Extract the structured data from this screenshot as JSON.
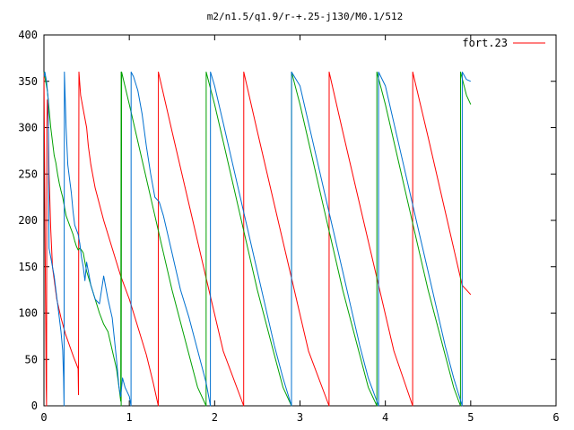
{
  "chart_data": {
    "type": "line",
    "title": "m2/n1.5/q1.9/r-+.25-j130/M0.1/512",
    "xlim": [
      0,
      6
    ],
    "ylim": [
      0,
      400
    ],
    "x_ticks": [
      "0",
      "1",
      "2",
      "3",
      "4",
      "5",
      "6"
    ],
    "y_ticks": [
      "0",
      "50",
      "100",
      "150",
      "200",
      "250",
      "300",
      "350",
      "400"
    ],
    "grid": false,
    "legend_position": "top-right",
    "series": [
      {
        "name": "fort.23",
        "color": "#ff0000",
        "points": [
          [
            0.0,
            360
          ],
          [
            0.005,
            290
          ],
          [
            0.012,
            200
          ],
          [
            0.018,
            120
          ],
          [
            0.022,
            75
          ],
          [
            0.026,
            20
          ],
          [
            0.03,
            0
          ],
          [
            0.034,
            300
          ],
          [
            0.04,
            330
          ],
          [
            0.05,
            310
          ],
          [
            0.06,
            250
          ],
          [
            0.08,
            190
          ],
          [
            0.1,
            150
          ],
          [
            0.15,
            115
          ],
          [
            0.2,
            95
          ],
          [
            0.25,
            78
          ],
          [
            0.3,
            65
          ],
          [
            0.35,
            52
          ],
          [
            0.38,
            45
          ],
          [
            0.4,
            40
          ],
          [
            0.405,
            12
          ],
          [
            0.41,
            360
          ],
          [
            0.43,
            335
          ],
          [
            0.47,
            315
          ],
          [
            0.5,
            300
          ],
          [
            0.52,
            280
          ],
          [
            0.55,
            260
          ],
          [
            0.6,
            235
          ],
          [
            0.7,
            200
          ],
          [
            0.8,
            170
          ],
          [
            0.9,
            140
          ],
          [
            1.0,
            115
          ],
          [
            1.1,
            85
          ],
          [
            1.2,
            55
          ],
          [
            1.28,
            25
          ],
          [
            1.34,
            0
          ],
          [
            1.341,
            360
          ],
          [
            1.5,
            296
          ],
          [
            1.7,
            217
          ],
          [
            1.9,
            138
          ],
          [
            2.1,
            59
          ],
          [
            2.34,
            0
          ],
          [
            2.341,
            360
          ],
          [
            2.5,
            296
          ],
          [
            2.7,
            217
          ],
          [
            2.9,
            138
          ],
          [
            3.1,
            59
          ],
          [
            3.34,
            0
          ],
          [
            3.341,
            360
          ],
          [
            3.5,
            296
          ],
          [
            3.7,
            217
          ],
          [
            3.9,
            138
          ],
          [
            4.1,
            59
          ],
          [
            4.32,
            0
          ],
          [
            4.321,
            360
          ],
          [
            4.5,
            290
          ],
          [
            4.7,
            210
          ],
          [
            4.9,
            130
          ],
          [
            5.0,
            120
          ]
        ]
      },
      {
        "name": "",
        "color": "#00a000",
        "points": [
          [
            0.0,
            360
          ],
          [
            0.02,
            350
          ],
          [
            0.04,
            340
          ],
          [
            0.06,
            320
          ],
          [
            0.08,
            300
          ],
          [
            0.1,
            285
          ],
          [
            0.12,
            270
          ],
          [
            0.14,
            262
          ],
          [
            0.16,
            250
          ],
          [
            0.18,
            240
          ],
          [
            0.2,
            232
          ],
          [
            0.22,
            225
          ],
          [
            0.24,
            215
          ],
          [
            0.26,
            205
          ],
          [
            0.28,
            200
          ],
          [
            0.3,
            195
          ],
          [
            0.32,
            190
          ],
          [
            0.34,
            185
          ],
          [
            0.36,
            178
          ],
          [
            0.38,
            172
          ],
          [
            0.4,
            168
          ],
          [
            0.42,
            170
          ],
          [
            0.44,
            168
          ],
          [
            0.46,
            165
          ],
          [
            0.48,
            155
          ],
          [
            0.5,
            145
          ],
          [
            0.55,
            130
          ],
          [
            0.6,
            115
          ],
          [
            0.65,
            100
          ],
          [
            0.7,
            88
          ],
          [
            0.75,
            80
          ],
          [
            0.8,
            60
          ],
          [
            0.85,
            40
          ],
          [
            0.88,
            20
          ],
          [
            0.9,
            5
          ],
          [
            0.905,
            360
          ],
          [
            0.905,
            0
          ],
          [
            0.91,
            360
          ],
          [
            1.0,
            325
          ],
          [
            1.1,
            285
          ],
          [
            1.2,
            245
          ],
          [
            1.3,
            205
          ],
          [
            1.4,
            165
          ],
          [
            1.5,
            125
          ],
          [
            1.6,
            90
          ],
          [
            1.7,
            55
          ],
          [
            1.8,
            20
          ],
          [
            1.9,
            0
          ],
          [
            1.901,
            360
          ],
          [
            2.0,
            325
          ],
          [
            2.1,
            285
          ],
          [
            2.2,
            245
          ],
          [
            2.3,
            205
          ],
          [
            2.4,
            165
          ],
          [
            2.5,
            125
          ],
          [
            2.6,
            90
          ],
          [
            2.7,
            55
          ],
          [
            2.8,
            20
          ],
          [
            2.9,
            0
          ],
          [
            2.901,
            360
          ],
          [
            3.0,
            325
          ],
          [
            3.1,
            285
          ],
          [
            3.2,
            245
          ],
          [
            3.3,
            205
          ],
          [
            3.4,
            165
          ],
          [
            3.5,
            125
          ],
          [
            3.6,
            90
          ],
          [
            3.7,
            55
          ],
          [
            3.8,
            20
          ],
          [
            3.9,
            0
          ],
          [
            3.901,
            360
          ],
          [
            4.0,
            325
          ],
          [
            4.1,
            285
          ],
          [
            4.2,
            245
          ],
          [
            4.3,
            205
          ],
          [
            4.4,
            165
          ],
          [
            4.5,
            125
          ],
          [
            4.6,
            90
          ],
          [
            4.7,
            55
          ],
          [
            4.8,
            20
          ],
          [
            4.88,
            0
          ],
          [
            4.881,
            360
          ],
          [
            4.95,
            335
          ],
          [
            5.0,
            325
          ]
        ]
      },
      {
        "name": "",
        "color": "#0070d0",
        "points": [
          [
            0.0,
            355
          ],
          [
            0.01,
            360
          ],
          [
            0.03,
            350
          ],
          [
            0.05,
            330
          ],
          [
            0.055,
            240
          ],
          [
            0.06,
            170
          ],
          [
            0.08,
            160
          ],
          [
            0.1,
            150
          ],
          [
            0.12,
            140
          ],
          [
            0.14,
            125
          ],
          [
            0.16,
            110
          ],
          [
            0.18,
            95
          ],
          [
            0.2,
            80
          ],
          [
            0.22,
            60
          ],
          [
            0.23,
            30
          ],
          [
            0.235,
            0
          ],
          [
            0.24,
            360
          ],
          [
            0.26,
            300
          ],
          [
            0.28,
            260
          ],
          [
            0.3,
            245
          ],
          [
            0.32,
            230
          ],
          [
            0.34,
            210
          ],
          [
            0.36,
            195
          ],
          [
            0.38,
            190
          ],
          [
            0.4,
            185
          ],
          [
            0.42,
            175
          ],
          [
            0.44,
            160
          ],
          [
            0.46,
            150
          ],
          [
            0.48,
            135
          ],
          [
            0.5,
            155
          ],
          [
            0.52,
            145
          ],
          [
            0.55,
            130
          ],
          [
            0.6,
            115
          ],
          [
            0.65,
            110
          ],
          [
            0.7,
            140
          ],
          [
            0.72,
            130
          ],
          [
            0.75,
            115
          ],
          [
            0.8,
            95
          ],
          [
            0.85,
            50
          ],
          [
            0.88,
            20
          ],
          [
            0.9,
            10
          ],
          [
            0.92,
            30
          ],
          [
            0.95,
            20
          ],
          [
            1.0,
            10
          ],
          [
            1.02,
            0
          ],
          [
            1.021,
            360
          ],
          [
            1.05,
            355
          ],
          [
            1.1,
            340
          ],
          [
            1.15,
            315
          ],
          [
            1.2,
            280
          ],
          [
            1.25,
            250
          ],
          [
            1.3,
            225
          ],
          [
            1.35,
            220
          ],
          [
            1.4,
            205
          ],
          [
            1.45,
            185
          ],
          [
            1.5,
            165
          ],
          [
            1.55,
            145
          ],
          [
            1.6,
            125
          ],
          [
            1.7,
            95
          ],
          [
            1.8,
            60
          ],
          [
            1.9,
            25
          ],
          [
            1.95,
            0
          ],
          [
            1.951,
            360
          ],
          [
            2.0,
            345
          ],
          [
            2.1,
            305
          ],
          [
            2.2,
            265
          ],
          [
            2.3,
            225
          ],
          [
            2.4,
            185
          ],
          [
            2.5,
            145
          ],
          [
            2.6,
            105
          ],
          [
            2.7,
            65
          ],
          [
            2.8,
            30
          ],
          [
            2.9,
            0
          ],
          [
            2.901,
            360
          ],
          [
            3.0,
            345
          ],
          [
            3.1,
            305
          ],
          [
            3.2,
            265
          ],
          [
            3.3,
            225
          ],
          [
            3.4,
            185
          ],
          [
            3.5,
            145
          ],
          [
            3.6,
            105
          ],
          [
            3.7,
            65
          ],
          [
            3.8,
            30
          ],
          [
            3.92,
            0
          ],
          [
            3.921,
            360
          ],
          [
            4.0,
            345
          ],
          [
            4.1,
            305
          ],
          [
            4.2,
            265
          ],
          [
            4.3,
            225
          ],
          [
            4.4,
            185
          ],
          [
            4.5,
            145
          ],
          [
            4.6,
            105
          ],
          [
            4.7,
            65
          ],
          [
            4.8,
            30
          ],
          [
            4.9,
            0
          ],
          [
            4.901,
            360
          ],
          [
            4.95,
            352
          ],
          [
            5.0,
            350
          ]
        ]
      }
    ]
  }
}
